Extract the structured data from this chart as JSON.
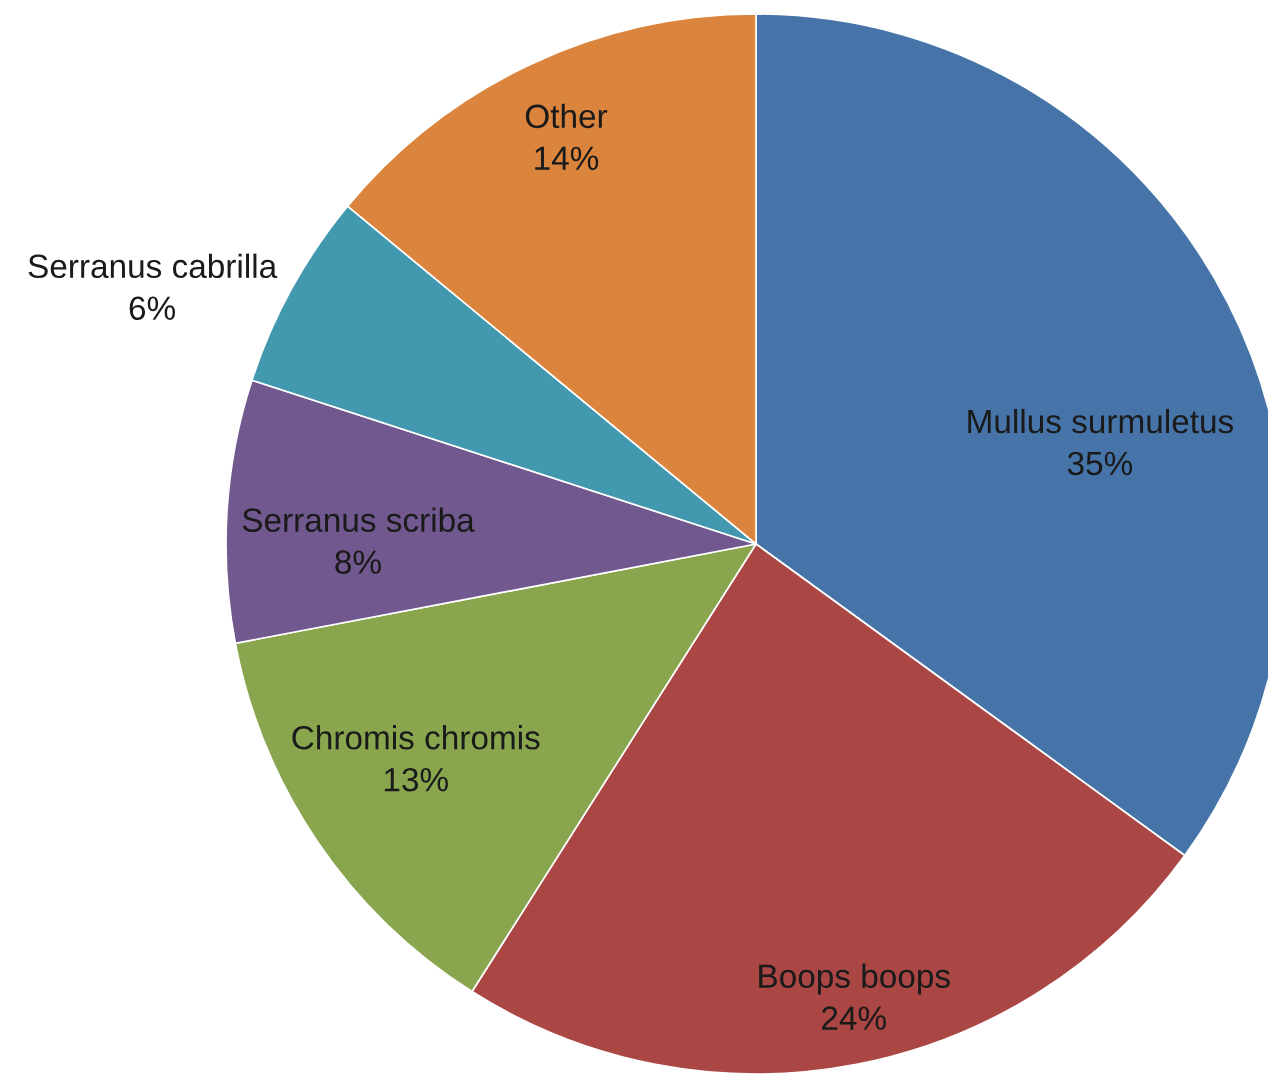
{
  "chart_data": {
    "type": "pie",
    "categories": [
      "Mullus surmuletus",
      "Boops boops",
      "Chromis chromis",
      "Serranus scriba",
      "Serranus cabrilla",
      "Other"
    ],
    "values": [
      35,
      24,
      13,
      8,
      6,
      14
    ],
    "colors": [
      "#4674a8",
      "#aa4643",
      "#89a54e",
      "#71588f",
      "#4198af",
      "#db843d"
    ],
    "value_labels": [
      "35%",
      "24%",
      "13%",
      "8%",
      "6%",
      "14%"
    ]
  }
}
